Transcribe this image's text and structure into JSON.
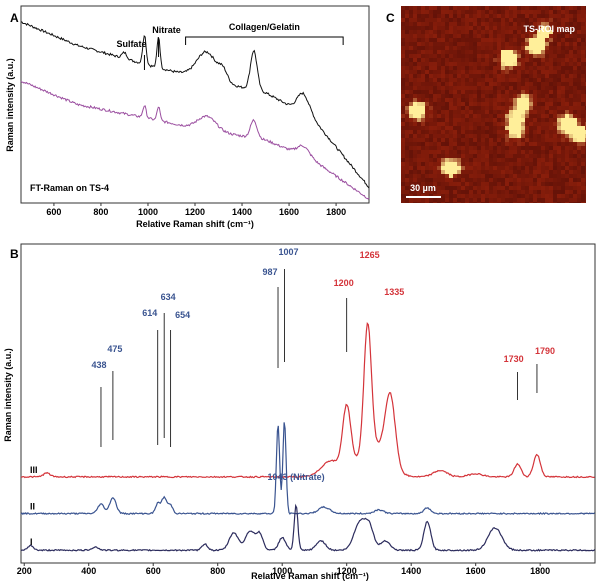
{
  "chart_data": [
    {
      "panel": "A",
      "type": "line",
      "annotation": "FT-Raman on TS-4",
      "xlabel": "Relative Raman shift (cm⁻¹)",
      "ylabel": "Raman intensity (a.u.)",
      "xlim": [
        460,
        1940
      ],
      "xticks": [
        "600",
        "800",
        "1000",
        "1200",
        "1400",
        "1600",
        "1800"
      ],
      "peak_labels": [
        {
          "text": "Sulfate",
          "x": 985
        },
        {
          "text": "Nitrate",
          "x": 1045
        }
      ],
      "bracket": {
        "text": "Collagen/Gelatin",
        "x_start": 1160,
        "x_end": 1830
      },
      "series": [
        {
          "color": "#111111",
          "offset": 0.62,
          "baseline": [
            [
              460,
              0.92
            ],
            [
              700,
              0.8
            ],
            [
              1000,
              0.7
            ],
            [
              1200,
              0.64
            ],
            [
              1500,
              0.56
            ],
            [
              1700,
              0.43
            ],
            [
              1940,
              0.08
            ]
          ],
          "peaks": [
            [
              985,
              0.15,
              10
            ],
            [
              1045,
              0.16,
              9
            ],
            [
              1250,
              0.14,
              60
            ],
            [
              1450,
              0.2,
              20
            ],
            [
              1660,
              0.1,
              35
            ],
            [
              900,
              0.03,
              15
            ],
            [
              1320,
              0.05,
              25
            ]
          ]
        },
        {
          "color": "#9b4fa0",
          "offset": 0.4,
          "baseline": [
            [
              460,
              0.62
            ],
            [
              700,
              0.5
            ],
            [
              1000,
              0.43
            ],
            [
              1200,
              0.38
            ],
            [
              1500,
              0.32
            ],
            [
              1700,
              0.22
            ],
            [
              1940,
              0.02
            ]
          ],
          "peaks": [
            [
              985,
              0.06,
              10
            ],
            [
              1045,
              0.07,
              9
            ],
            [
              1250,
              0.07,
              55
            ],
            [
              1450,
              0.09,
              20
            ],
            [
              1660,
              0.05,
              35
            ]
          ]
        }
      ]
    },
    {
      "panel": "C",
      "type": "heatmap",
      "title": "TS-ROI map",
      "scalebar": "30 µm",
      "colors": {
        "low": "#4a0a05",
        "mid": "#8a1e0b",
        "high": "#ffef9a"
      },
      "hotspots": [
        {
          "col": 0.73,
          "row": 0.2,
          "v": 1.0
        },
        {
          "col": 0.58,
          "row": 0.27,
          "v": 0.95
        },
        {
          "col": 0.09,
          "row": 0.53,
          "v": 0.85
        },
        {
          "col": 0.66,
          "row": 0.5,
          "v": 0.9
        },
        {
          "col": 0.62,
          "row": 0.63,
          "v": 0.7
        },
        {
          "col": 0.9,
          "row": 0.6,
          "v": 1.0
        },
        {
          "col": 0.96,
          "row": 0.65,
          "v": 0.9
        },
        {
          "col": 0.27,
          "row": 0.82,
          "v": 0.85
        },
        {
          "col": 0.62,
          "row": 0.57,
          "v": 0.6
        },
        {
          "col": 0.78,
          "row": 0.13,
          "v": 0.5
        }
      ]
    },
    {
      "panel": "B",
      "type": "line",
      "xlabel": "Relative Raman shift (cm⁻¹)",
      "ylabel": "Raman intensity (a.u.)",
      "xlim": [
        190,
        1970
      ],
      "xticks": [
        "200",
        "400",
        "600",
        "800",
        "1000",
        "1200",
        "1400",
        "1600",
        "1800"
      ],
      "series": [
        {
          "name": "III",
          "color": "#d4343a",
          "baseline": 0.27,
          "peaks": [
            [
              270,
              0.012,
              15
            ],
            [
              1200,
              0.2,
              18
            ],
            [
              1265,
              0.39,
              16
            ],
            [
              1335,
              0.22,
              22
            ],
            [
              1150,
              0.05,
              40
            ],
            [
              1280,
              0.1,
              60
            ],
            [
              1490,
              0.02,
              30
            ],
            [
              1730,
              0.04,
              15
            ],
            [
              1790,
              0.07,
              15
            ],
            [
              1600,
              0.01,
              30
            ]
          ]
        },
        {
          "name": "II",
          "color": "#3a5490",
          "baseline": 0.155,
          "peaks": [
            [
              438,
              0.03,
              14
            ],
            [
              475,
              0.05,
              14
            ],
            [
              614,
              0.03,
              10
            ],
            [
              634,
              0.05,
              12
            ],
            [
              654,
              0.025,
              10
            ],
            [
              987,
              0.28,
              7
            ],
            [
              1007,
              0.29,
              7
            ],
            [
              1130,
              0.02,
              25
            ],
            [
              1300,
              0.012,
              20
            ],
            [
              1450,
              0.018,
              15
            ]
          ]
        },
        {
          "name": "I",
          "color": "#2d2d5e",
          "baseline": 0.04,
          "peaks": [
            [
              220,
              0.015,
              12
            ],
            [
              420,
              0.01,
              15
            ],
            [
              760,
              0.02,
              12
            ],
            [
              850,
              0.055,
              20
            ],
            [
              900,
              0.06,
              20
            ],
            [
              930,
              0.05,
              15
            ],
            [
              1000,
              0.04,
              15
            ],
            [
              1043,
              0.14,
              8
            ],
            [
              1120,
              0.03,
              20
            ],
            [
              1240,
              0.085,
              25
            ],
            [
              1270,
              0.07,
              20
            ],
            [
              1320,
              0.03,
              20
            ],
            [
              1450,
              0.09,
              15
            ],
            [
              1660,
              0.07,
              30
            ]
          ]
        }
      ],
      "peak_labels": [
        {
          "text": "438",
          "x": 438,
          "color": "#3a5490"
        },
        {
          "text": "475",
          "x": 475,
          "color": "#3a5490"
        },
        {
          "text": "614",
          "x": 614,
          "color": "#3a5490"
        },
        {
          "text": "634",
          "x": 634,
          "color": "#3a5490"
        },
        {
          "text": "654",
          "x": 654,
          "color": "#3a5490"
        },
        {
          "text": "987",
          "x": 987,
          "color": "#3a5490"
        },
        {
          "text": "1007",
          "x": 1007,
          "color": "#3a5490"
        },
        {
          "text": "1200",
          "x": 1200,
          "color": "#d4343a"
        },
        {
          "text": "1265",
          "x": 1265,
          "color": "#d4343a"
        },
        {
          "text": "1335",
          "x": 1335,
          "color": "#d4343a"
        },
        {
          "text": "1730",
          "x": 1730,
          "color": "#d4343a"
        },
        {
          "text": "1790",
          "x": 1790,
          "color": "#d4343a"
        },
        {
          "text": "1043 (Nitrate)",
          "x": 1043,
          "color": "#3a5490"
        }
      ]
    }
  ]
}
